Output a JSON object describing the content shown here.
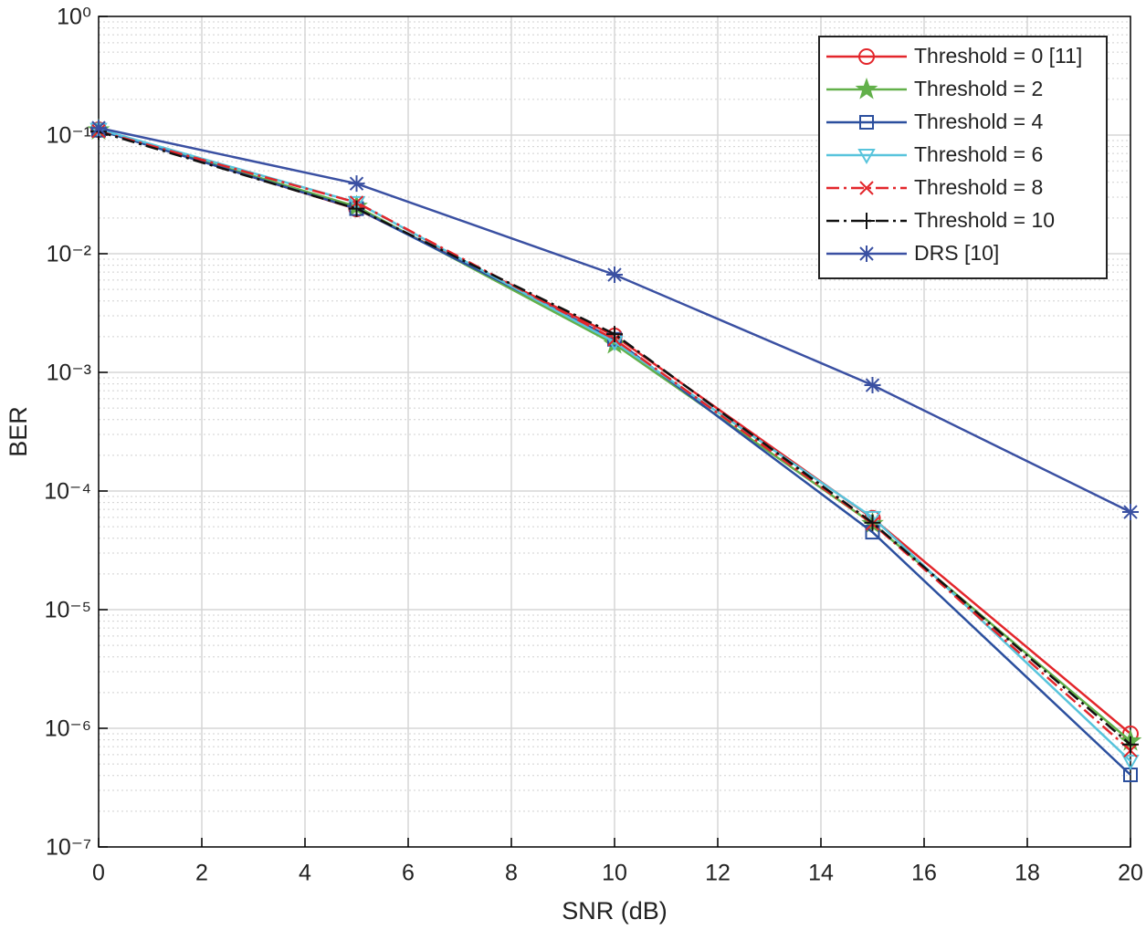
{
  "chart_data": {
    "type": "line",
    "x_label": "SNR (dB)",
    "y_label": "BER",
    "x": [
      0,
      5,
      10,
      15,
      20
    ],
    "xlim": [
      0,
      20
    ],
    "xticks": [
      0,
      2,
      4,
      6,
      8,
      10,
      12,
      14,
      16,
      18,
      20
    ],
    "ylim": [
      1e-07,
      1
    ],
    "y_scale": "log",
    "yticks": [
      {
        "value": 1e-07,
        "label": "10⁻⁷"
      },
      {
        "value": 1e-06,
        "label": "10⁻⁶"
      },
      {
        "value": 1e-05,
        "label": "10⁻⁵"
      },
      {
        "value": 0.0001,
        "label": "10⁻⁴"
      },
      {
        "value": 0.001,
        "label": "10⁻³"
      },
      {
        "value": 0.01,
        "label": "10⁻²"
      },
      {
        "value": 0.1,
        "label": "10⁻¹"
      },
      {
        "value": 1,
        "label": "10⁰"
      }
    ],
    "grid": true,
    "minor_grid": true,
    "legend_position": "upper right",
    "series": [
      {
        "name": "Threshold = 0 [11]",
        "color": "#e3262b",
        "marker": "o",
        "line_style": "solid",
        "values": [
          0.111,
          0.0238,
          0.00203,
          5.9e-05,
          9e-07
        ]
      },
      {
        "name": "Threshold = 2",
        "color": "#62b04a",
        "marker": "p",
        "line_style": "solid",
        "values": [
          0.11,
          0.025,
          0.00173,
          5.3e-05,
          7.8e-07
        ]
      },
      {
        "name": "Threshold = 4",
        "color": "#2b4f9e",
        "marker": "s",
        "line_style": "solid",
        "values": [
          0.11,
          0.024,
          0.0019,
          4.5e-05,
          4.05e-07
        ]
      },
      {
        "name": "Threshold = 6",
        "color": "#58c4dc",
        "marker": "v",
        "line_style": "solid",
        "values": [
          0.112,
          0.027,
          0.0018,
          6e-05,
          5.3e-07
        ]
      },
      {
        "name": "Threshold = 8",
        "color": "#e3262b",
        "marker": "x",
        "line_style": "dashdot",
        "values": [
          0.108,
          0.027,
          0.0019,
          5.3e-05,
          6.5e-07
        ]
      },
      {
        "name": "Threshold = 10",
        "color": "#111111",
        "marker": "+",
        "line_style": "dashdot",
        "values": [
          0.107,
          0.024,
          0.0021,
          5.4e-05,
          7.3e-07
        ]
      },
      {
        "name": "DRS [10]",
        "color": "#3a50a2",
        "marker": "*",
        "line_style": "solid",
        "values": [
          0.115,
          0.039,
          0.00665,
          0.00078,
          6.65e-05
        ]
      }
    ]
  }
}
